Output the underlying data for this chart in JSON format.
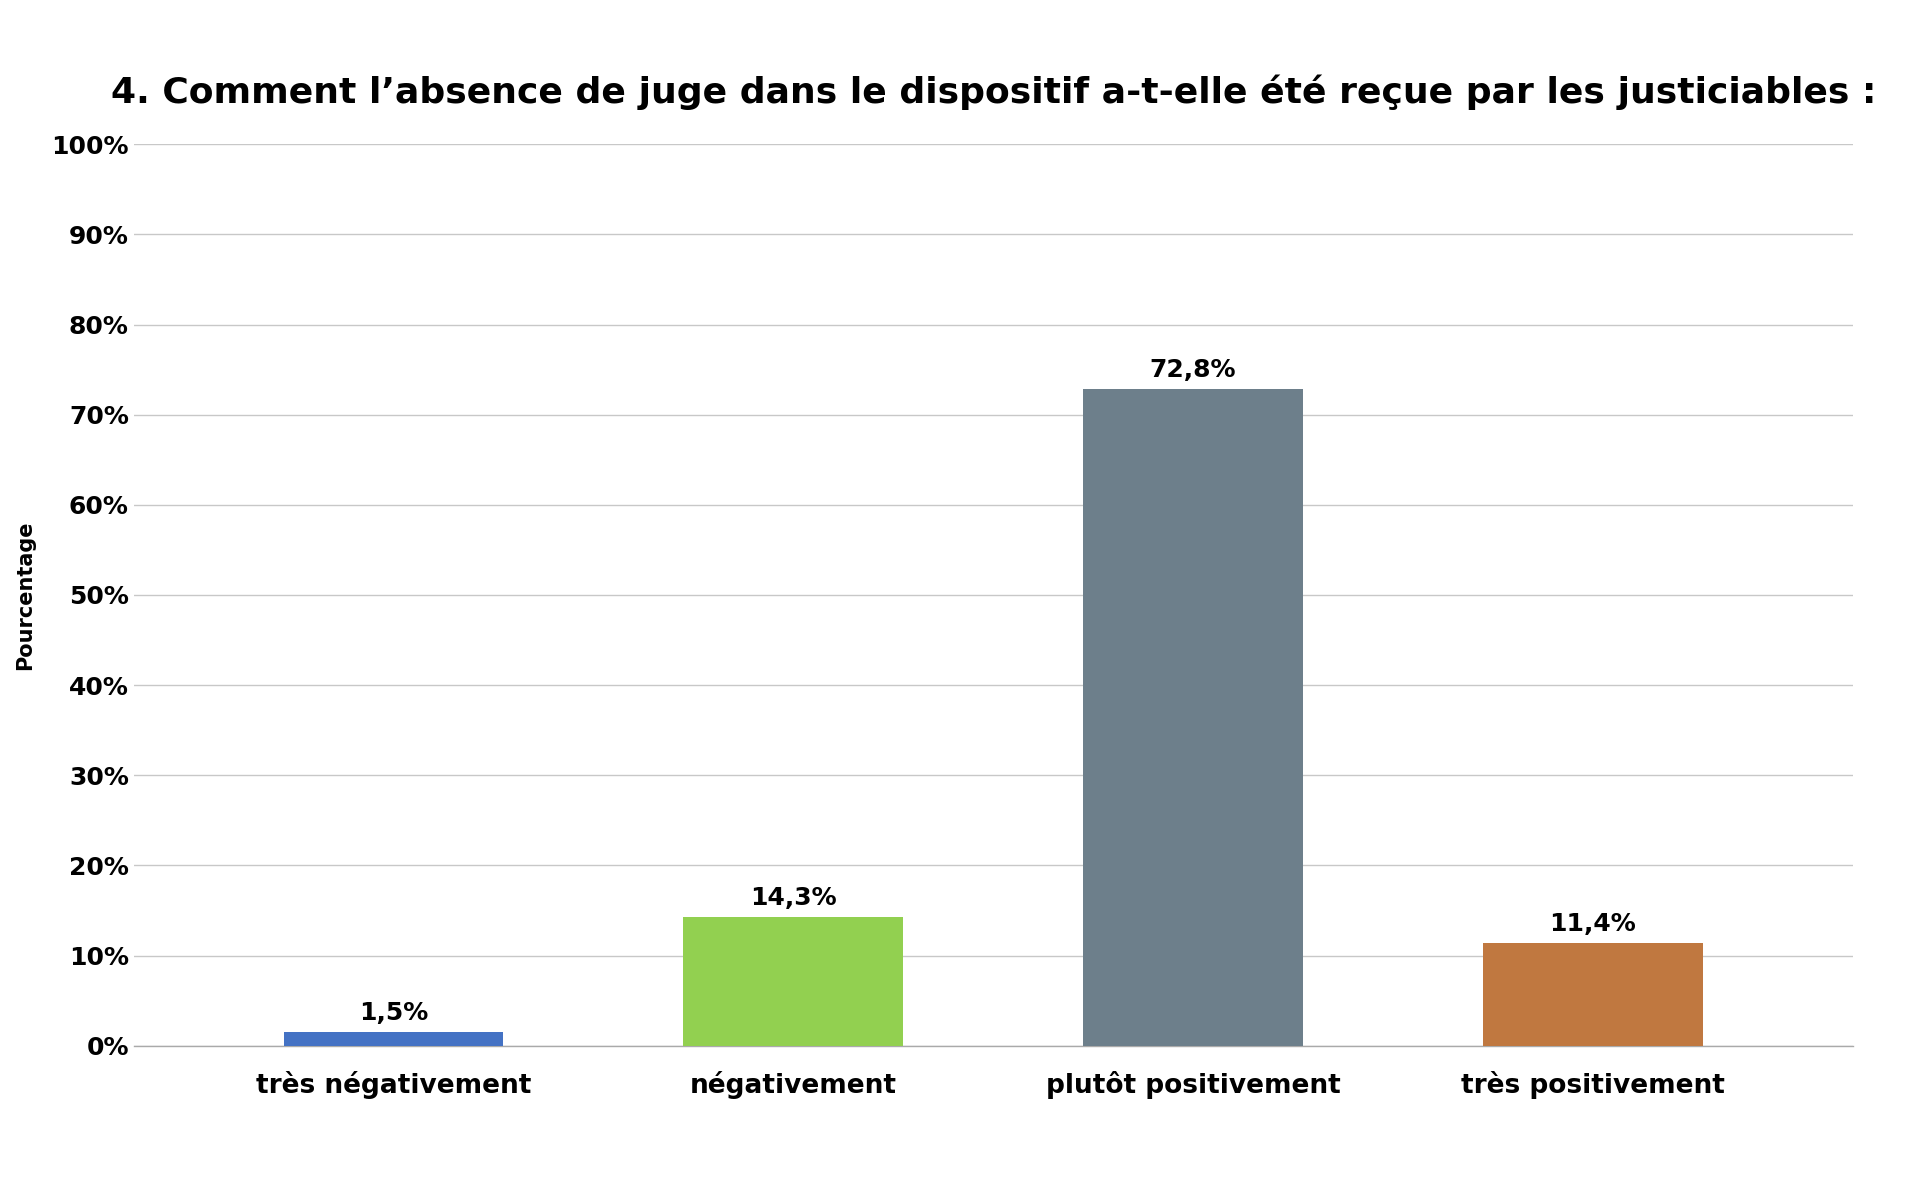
{
  "title": "4. Comment l’absence de juge dans le dispositif a-t-elle été reçue par les justiciables :",
  "categories": [
    "très négativement",
    "négativement",
    "plutôt positivement",
    "très positivement"
  ],
  "values": [
    1.5,
    14.3,
    72.8,
    11.4
  ],
  "labels": [
    "1,5%",
    "14,3%",
    "72,8%",
    "11,4%"
  ],
  "bar_colors": [
    "#4472c4",
    "#92d050",
    "#6d7f8b",
    "#c07840"
  ],
  "ylabel": "Pourcentage",
  "ylim": [
    0,
    100
  ],
  "yticks": [
    0,
    10,
    20,
    30,
    40,
    50,
    60,
    70,
    80,
    90,
    100
  ],
  "ytick_labels": [
    "0%",
    "10%",
    "20%",
    "30%",
    "40%",
    "50%",
    "60%",
    "70%",
    "80%",
    "90%",
    "100%"
  ],
  "background_color": "#ffffff",
  "title_fontsize": 26,
  "label_fontsize": 18,
  "tick_fontsize": 18,
  "xtick_fontsize": 19,
  "ylabel_fontsize": 15,
  "bar_width": 0.55,
  "grid_color": "#c8c8c8"
}
